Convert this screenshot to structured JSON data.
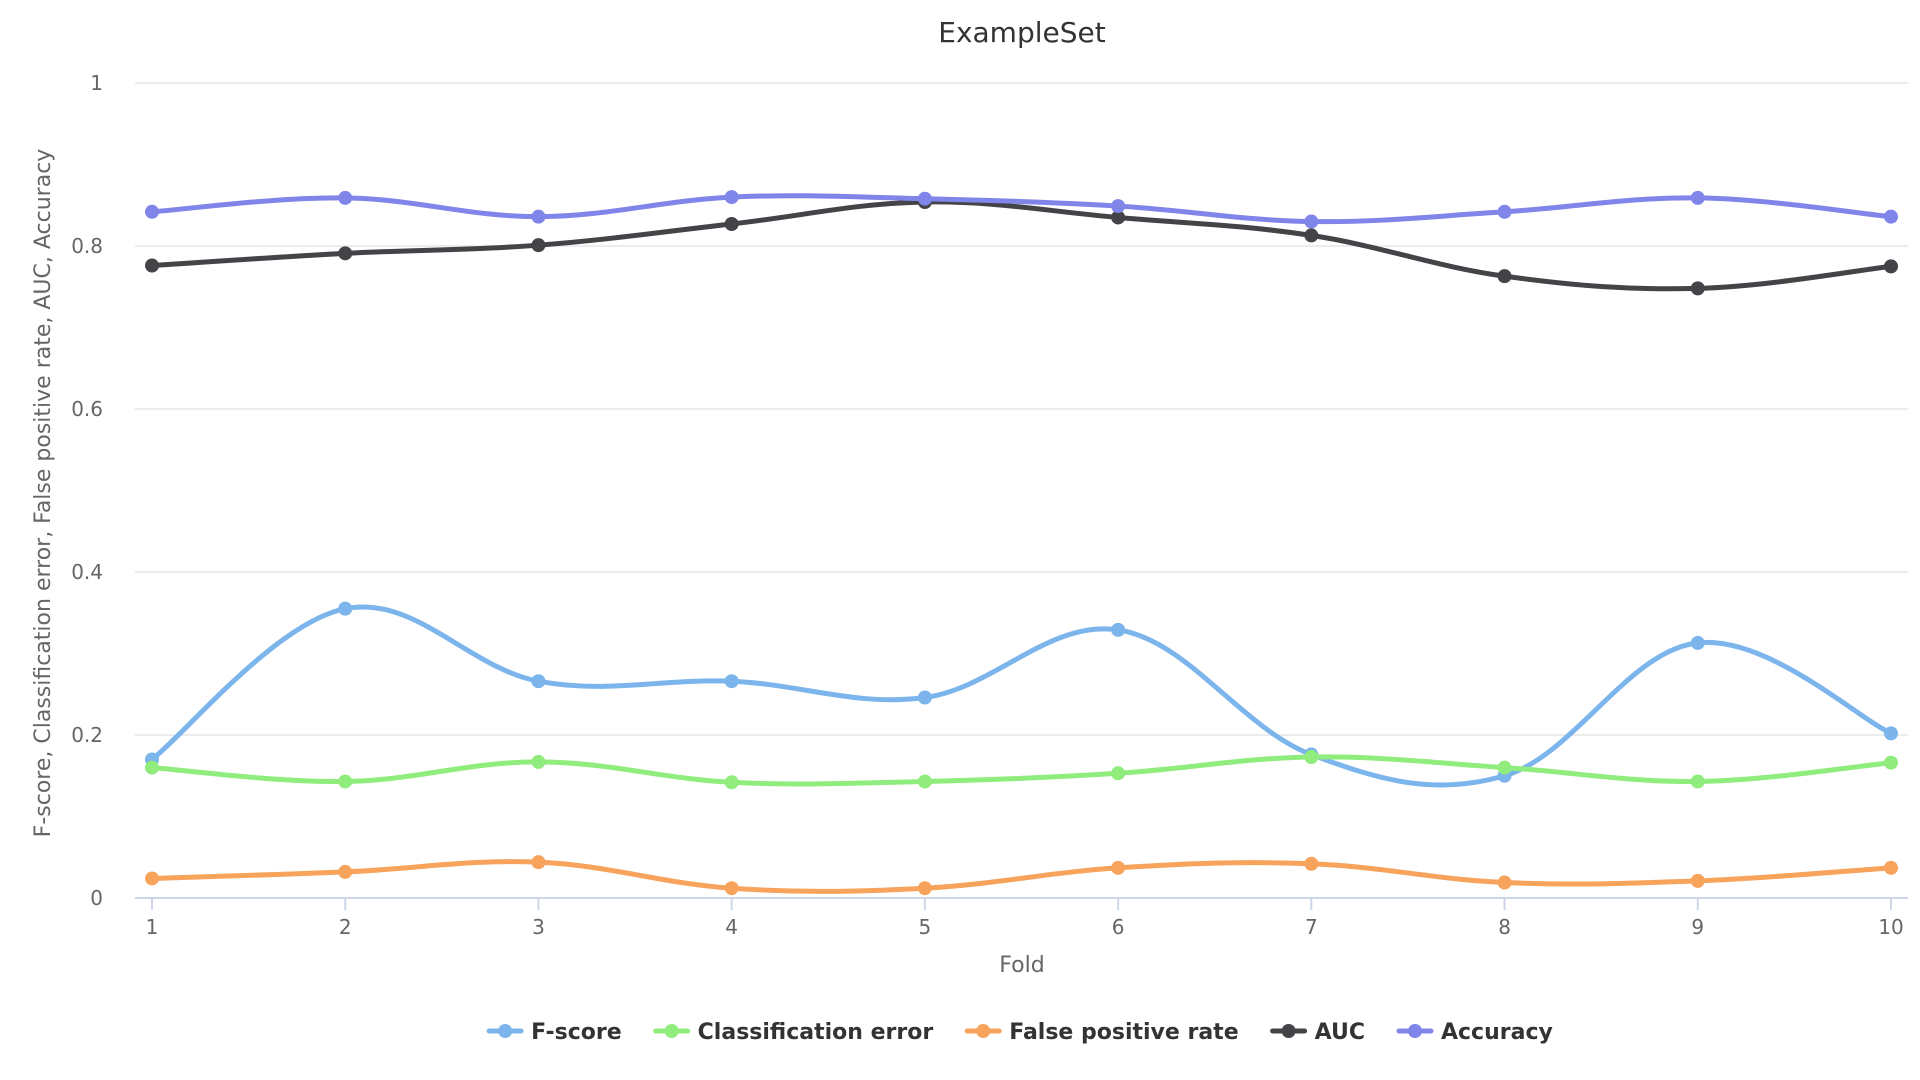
{
  "chart_data": {
    "type": "line",
    "title": "ExampleSet",
    "xlabel": "Fold",
    "ylabel": "F-score, Classification error, False positive rate, AUC, Accuracy",
    "categories": [
      "1",
      "2",
      "3",
      "4",
      "5",
      "6",
      "7",
      "8",
      "9",
      "10"
    ],
    "x": [
      1,
      2,
      3,
      4,
      5,
      6,
      7,
      8,
      9,
      10
    ],
    "ylim": [
      0,
      1
    ],
    "yticks": [
      {
        "value": 0,
        "label": "0"
      },
      {
        "value": 0.2,
        "label": "0.2"
      },
      {
        "value": 0.4,
        "label": "0.4"
      },
      {
        "value": 0.6,
        "label": "0.6"
      },
      {
        "value": 0.8,
        "label": "0.8"
      },
      {
        "value": 1,
        "label": "1"
      }
    ],
    "grid": true,
    "smooth": true,
    "legend_position": "bottom-center",
    "series": [
      {
        "name": "F-score",
        "color": "#7cb5ec",
        "values": [
          0.17,
          0.355,
          0.266,
          0.266,
          0.246,
          0.329,
          0.176,
          0.15,
          0.313,
          0.202
        ]
      },
      {
        "name": "Classification error",
        "color": "#90ed7d",
        "values": [
          0.16,
          0.143,
          0.167,
          0.142,
          0.143,
          0.153,
          0.173,
          0.16,
          0.143,
          0.166
        ]
      },
      {
        "name": "False positive rate",
        "color": "#f7a35c",
        "values": [
          0.024,
          0.032,
          0.044,
          0.012,
          0.012,
          0.037,
          0.042,
          0.019,
          0.021,
          0.037
        ]
      },
      {
        "name": "AUC",
        "color": "#434348",
        "values": [
          0.776,
          0.791,
          0.801,
          0.827,
          0.854,
          0.835,
          0.813,
          0.763,
          0.748,
          0.775
        ]
      },
      {
        "name": "Accuracy",
        "color": "#8085e9",
        "values": [
          0.842,
          0.859,
          0.836,
          0.86,
          0.858,
          0.849,
          0.83,
          0.842,
          0.859,
          0.836
        ]
      }
    ]
  }
}
